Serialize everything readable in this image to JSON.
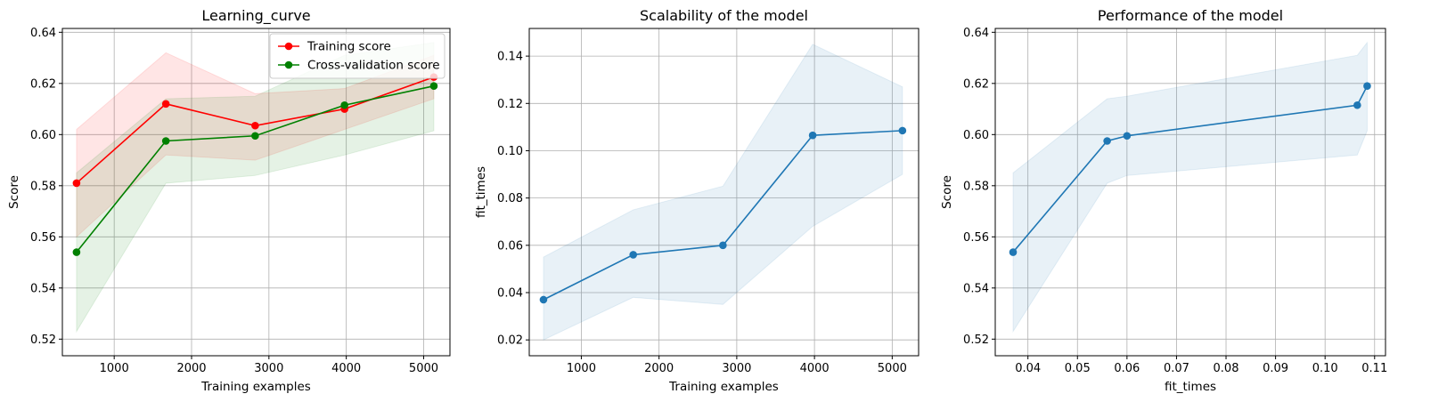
{
  "colors": {
    "train": "#ff0000",
    "cv": "#008000",
    "blue": "#1f77b4",
    "grid": "#b0b0b0",
    "axes": "#000000"
  },
  "chart_data": [
    {
      "type": "line",
      "title": "Learning_curve",
      "xlabel": "Training examples",
      "ylabel": "Score",
      "xlim": [
        330,
        5340
      ],
      "ylim": [
        0.5135,
        0.6415
      ],
      "xticks": [
        1000,
        2000,
        3000,
        4000,
        5000
      ],
      "yticks": [
        0.52,
        0.54,
        0.56,
        0.58,
        0.6,
        0.62,
        0.64
      ],
      "grid": true,
      "legend": "upper right",
      "x": [
        513,
        1668,
        2822,
        3977,
        5132
      ],
      "series": [
        {
          "name": "Training score",
          "color": "#ff0000",
          "marker": "o",
          "values": [
            0.581,
            0.612,
            0.6035,
            0.61,
            0.6225
          ],
          "band_low": [
            0.56,
            0.592,
            0.59,
            0.602,
            0.614
          ],
          "band_high": [
            0.602,
            0.632,
            0.616,
            0.618,
            0.631
          ]
        },
        {
          "name": "Cross-validation score",
          "color": "#008000",
          "marker": "o",
          "values": [
            0.554,
            0.5975,
            0.5995,
            0.6115,
            0.619
          ],
          "band_low": [
            0.523,
            0.581,
            0.584,
            0.592,
            0.6015
          ],
          "band_high": [
            0.585,
            0.614,
            0.615,
            0.631,
            0.636
          ]
        }
      ]
    },
    {
      "type": "line",
      "title": "Scalability of the model",
      "xlabel": "Training examples",
      "ylabel": "fit_times",
      "xlim": [
        330,
        5340
      ],
      "ylim": [
        0.0133,
        0.1517
      ],
      "xticks": [
        1000,
        2000,
        3000,
        4000,
        5000
      ],
      "yticks": [
        0.02,
        0.04,
        0.06,
        0.08,
        0.1,
        0.12,
        0.14
      ],
      "grid": true,
      "x": [
        513,
        1668,
        2822,
        3977,
        5132
      ],
      "series": [
        {
          "color": "#1f77b4",
          "marker": "o",
          "values": [
            0.037,
            0.056,
            0.06,
            0.1065,
            0.1085
          ],
          "band_low": [
            0.02,
            0.038,
            0.035,
            0.068,
            0.09
          ],
          "band_high": [
            0.055,
            0.075,
            0.085,
            0.145,
            0.127
          ]
        }
      ]
    },
    {
      "type": "line",
      "title": "Performance of the model",
      "xlabel": "fit_times",
      "ylabel": "Score",
      "xlim": [
        0.0334,
        0.1122
      ],
      "ylim": [
        0.5135,
        0.6415
      ],
      "xticks": [
        0.04,
        0.05,
        0.06,
        0.07,
        0.08,
        0.09,
        0.1,
        0.11
      ],
      "yticks": [
        0.52,
        0.54,
        0.56,
        0.58,
        0.6,
        0.62,
        0.64
      ],
      "grid": true,
      "x": [
        0.037,
        0.056,
        0.06,
        0.1065,
        0.1085
      ],
      "series": [
        {
          "color": "#1f77b4",
          "marker": "o",
          "values": [
            0.554,
            0.5975,
            0.5995,
            0.6115,
            0.619
          ],
          "band_x": [
            0.037,
            0.056,
            0.06,
            0.1065,
            0.1085
          ],
          "band_low": [
            0.523,
            0.581,
            0.584,
            0.592,
            0.6015
          ],
          "band_high": [
            0.585,
            0.614,
            0.615,
            0.631,
            0.636
          ]
        }
      ]
    }
  ]
}
